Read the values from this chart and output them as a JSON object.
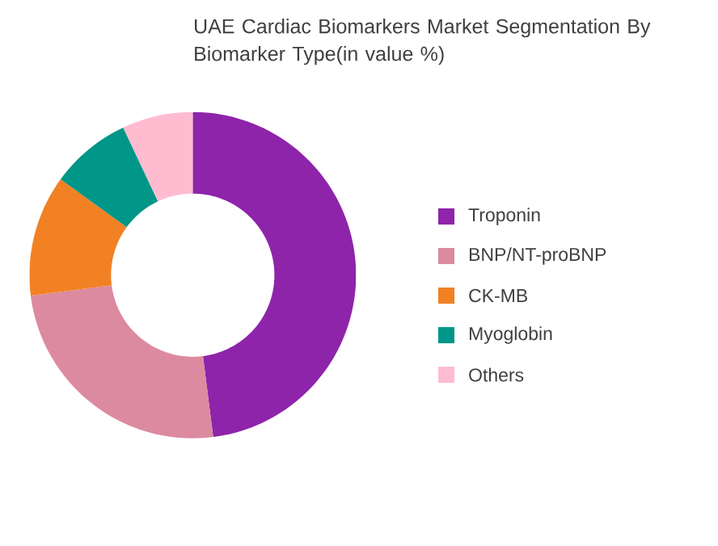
{
  "chart_data": {
    "type": "donut",
    "title": "UAE Cardiac Biomarkers Market Segmentation By Biomarker Type(in value %)",
    "categories": [
      "Troponin",
      "BNP/NT-proBNP",
      "CK-MB",
      "Myoglobin",
      "Others"
    ],
    "values": [
      48,
      25,
      12,
      8,
      7
    ],
    "colors": [
      "#8e24aa",
      "#dc8aa0",
      "#f28124",
      "#009688",
      "#ffbcd1"
    ],
    "legend": "right"
  }
}
